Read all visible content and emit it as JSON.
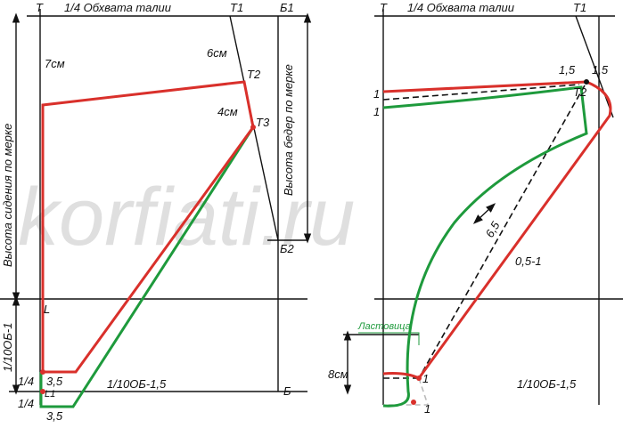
{
  "watermark": "korfiati.ru",
  "left": {
    "labels": [
      "Т",
      "1/4 Обхвата талии",
      "Т1",
      "Б1",
      "Высота сидения по мерке",
      "7см",
      "6см",
      "Т2",
      "4см",
      "Т3",
      "Высота бедер по мерке",
      "Б2",
      "L",
      "1/10ОБ-1",
      "1/4",
      "3,5",
      "L1",
      "1/10ОБ-1,5",
      "Б",
      "1/4",
      "3,5"
    ]
  },
  "right": {
    "labels": [
      "Т",
      "1/4 Обхвата талии",
      "Т1",
      "1,5",
      "1,5",
      "1",
      "1",
      "Т2",
      "6,5",
      "0,5-1",
      "Ластовица",
      "8см",
      "1",
      "1/10ОБ-1,5",
      "1"
    ]
  }
}
